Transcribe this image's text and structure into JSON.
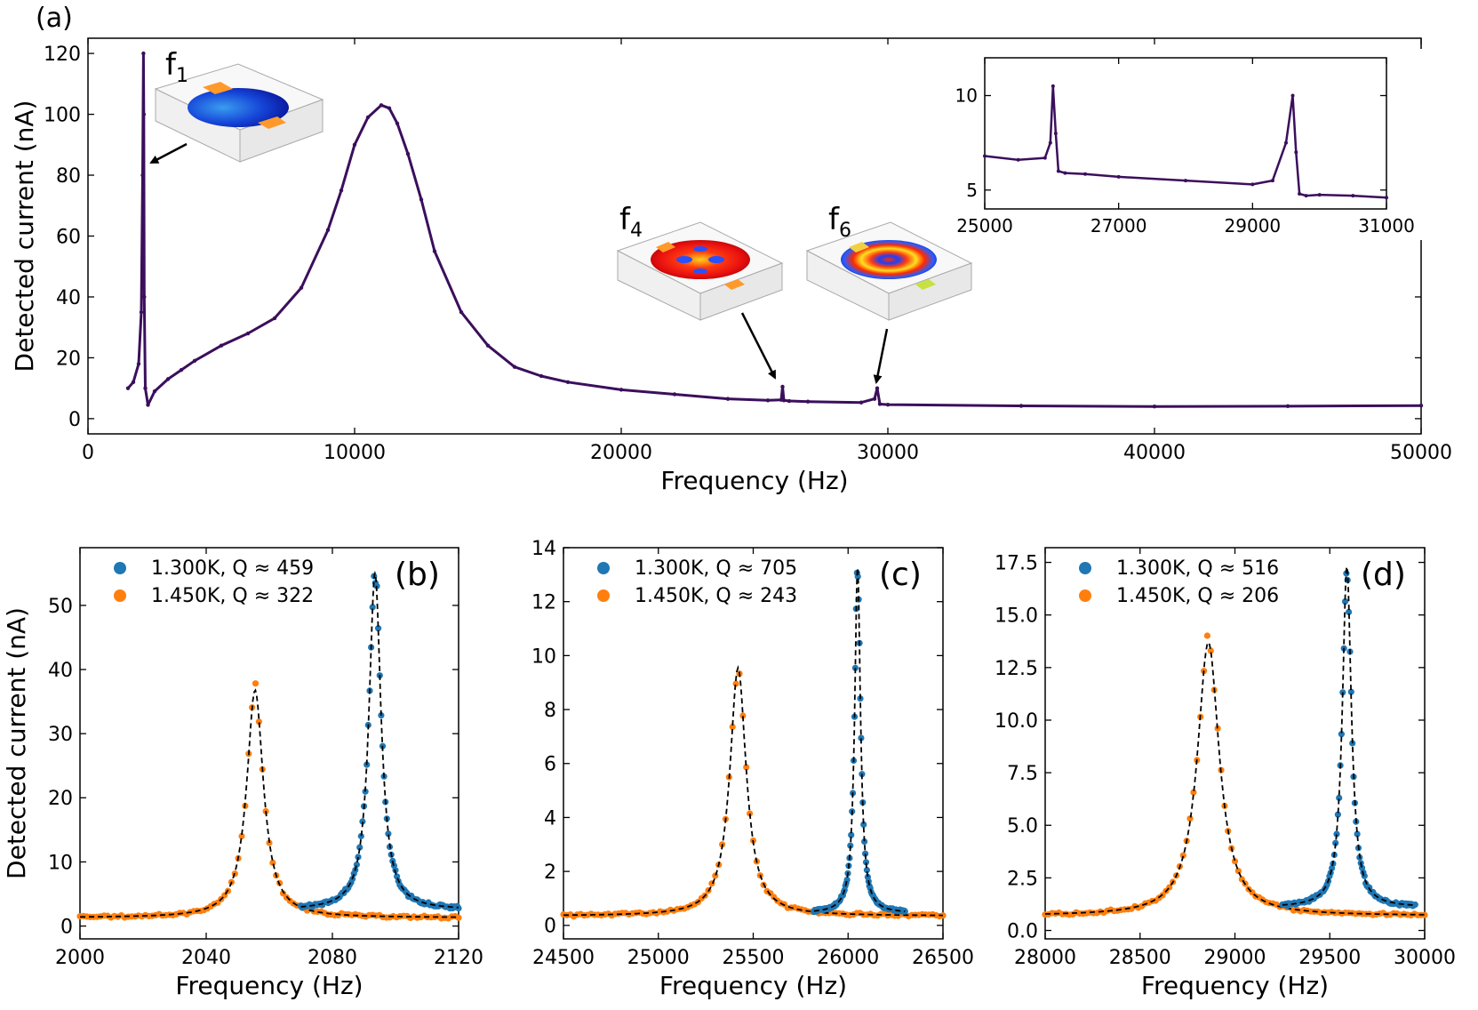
{
  "figure_label_a": "(a)",
  "mode_labels": {
    "f1": "f",
    "f1_sub": "1",
    "f4": "f",
    "f4_sub": "4",
    "f6": "f",
    "f6_sub": "6"
  },
  "colors": {
    "main": "#3b0f5c",
    "blue": "#1f77b4",
    "orange": "#ff7f0e",
    "fit": "#000000"
  },
  "chart_data": [
    {
      "id": "a",
      "type": "line",
      "title": "",
      "xlabel": "Frequency (Hz)",
      "ylabel": "Detected current (nA)",
      "xlim": [
        0,
        50000
      ],
      "ylim": [
        -5,
        125
      ],
      "xticks": [
        0,
        10000,
        20000,
        30000,
        40000,
        50000
      ],
      "yticks": [
        0,
        20,
        40,
        60,
        80,
        100,
        120
      ],
      "series": [
        {
          "name": "spectrum",
          "x": [
            1500,
            1700,
            1900,
            2000,
            2050,
            2080,
            2095,
            2110,
            2150,
            2250,
            2500,
            3000,
            3500,
            4000,
            5000,
            6000,
            7000,
            8000,
            9000,
            9500,
            10000,
            10500,
            11000,
            11300,
            11600,
            12000,
            12500,
            13000,
            14000,
            15000,
            16000,
            17000,
            18000,
            20000,
            22000,
            24000,
            25500,
            26000,
            26050,
            26100,
            26300,
            27000,
            29000,
            29500,
            29600,
            29700,
            30000,
            35000,
            40000,
            45000,
            50000
          ],
          "y": [
            10,
            12,
            18,
            35,
            80,
            120,
            100,
            40,
            10,
            4.5,
            9,
            13,
            16,
            19,
            24,
            28,
            33,
            43,
            62,
            75,
            90,
            99,
            103,
            102,
            97,
            87,
            72,
            55,
            35,
            24,
            17,
            14,
            12,
            9.5,
            8,
            6.5,
            6,
            6.2,
            10.5,
            6,
            5.8,
            5.6,
            5.3,
            6.5,
            10,
            4.8,
            4.6,
            4.2,
            4,
            4.1,
            4.3
          ]
        }
      ],
      "annotations": [
        {
          "text": "f1",
          "points_to": [
            2100,
            85
          ]
        },
        {
          "text": "f4",
          "points_to": [
            26050,
            13
          ]
        },
        {
          "text": "f6",
          "points_to": [
            29600,
            11
          ]
        }
      ]
    },
    {
      "id": "inset",
      "type": "line",
      "xlim": [
        25000,
        31000
      ],
      "ylim": [
        4,
        12
      ],
      "xticks": [
        25000,
        27000,
        29000,
        31000
      ],
      "yticks": [
        5,
        10
      ],
      "series": [
        {
          "name": "zoom",
          "x": [
            25000,
            25500,
            25900,
            25980,
            26020,
            26060,
            26100,
            26200,
            26500,
            27000,
            28000,
            29000,
            29300,
            29500,
            29600,
            29650,
            29700,
            29800,
            30000,
            30500,
            31000
          ],
          "y": [
            6.8,
            6.6,
            6.7,
            7.5,
            10.5,
            8,
            6,
            5.9,
            5.85,
            5.7,
            5.5,
            5.3,
            5.5,
            7.5,
            10,
            7,
            4.8,
            4.7,
            4.75,
            4.7,
            4.6
          ]
        }
      ]
    },
    {
      "id": "b",
      "type": "scatter",
      "panel_label": "(b)",
      "xlabel": "Frequency (Hz)",
      "ylabel": "Detected current (nA)",
      "xlim": [
        2000,
        2120
      ],
      "ylim": [
        -2,
        59
      ],
      "xticks": [
        2000,
        2040,
        2080,
        2120
      ],
      "yticks": [
        0,
        10,
        20,
        30,
        40,
        50
      ],
      "series": [
        {
          "name": "1.300K, Q ≈ 459",
          "color": "blue",
          "f0": 2093.5,
          "gamma": 2.3,
          "amp": 52.5,
          "base": 2.5,
          "xrange": [
            2070,
            2120
          ]
        },
        {
          "name": "1.450K, Q ≈ 322",
          "color": "orange",
          "f0": 2055.5,
          "gamma": 3.2,
          "amp": 35.5,
          "base": 1.3,
          "xrange": [
            2000,
            2120
          ]
        }
      ]
    },
    {
      "id": "c",
      "type": "scatter",
      "panel_label": "(c)",
      "xlabel": "Frequency (Hz)",
      "ylabel": "",
      "xlim": [
        24500,
        26500
      ],
      "ylim": [
        -0.5,
        14
      ],
      "xticks": [
        24500,
        25000,
        25500,
        26000,
        26500
      ],
      "yticks": [
        0,
        2,
        4,
        6,
        8,
        10,
        12,
        14
      ],
      "series": [
        {
          "name": "1.300K, Q ≈ 705",
          "color": "blue",
          "f0": 26050,
          "gamma": 18.5,
          "amp": 12.8,
          "base": 0.45,
          "xrange": [
            25820,
            26300
          ]
        },
        {
          "name": "1.450K, Q ≈ 243",
          "color": "orange",
          "f0": 25420,
          "gamma": 52,
          "amp": 9.2,
          "base": 0.35,
          "xrange": [
            24500,
            26500
          ]
        }
      ]
    },
    {
      "id": "d",
      "type": "scatter",
      "panel_label": "(d)",
      "xlabel": "Frequency (Hz)",
      "ylabel": "",
      "xlim": [
        28000,
        30000
      ],
      "ylim": [
        -0.4,
        18.2
      ],
      "xticks": [
        28000,
        28500,
        29000,
        29500,
        30000
      ],
      "yticks": [
        0.0,
        2.5,
        5.0,
        7.5,
        10.0,
        12.5,
        15.0,
        17.5
      ],
      "ytick_labels": [
        "0.0",
        "2.5",
        "5.0",
        "7.5",
        "10.0",
        "12.5",
        "15.0",
        "17.5"
      ],
      "series": [
        {
          "name": "1.300K, Q ≈ 516",
          "color": "blue",
          "f0": 29590,
          "gamma": 28.5,
          "amp": 16.2,
          "base": 1.1,
          "xrange": [
            29250,
            29950
          ]
        },
        {
          "name": "1.450K, Q ≈ 206",
          "color": "orange",
          "f0": 28860,
          "gamma": 70,
          "amp": 13.0,
          "base": 0.7,
          "xrange": [
            28000,
            30000
          ]
        }
      ]
    }
  ]
}
